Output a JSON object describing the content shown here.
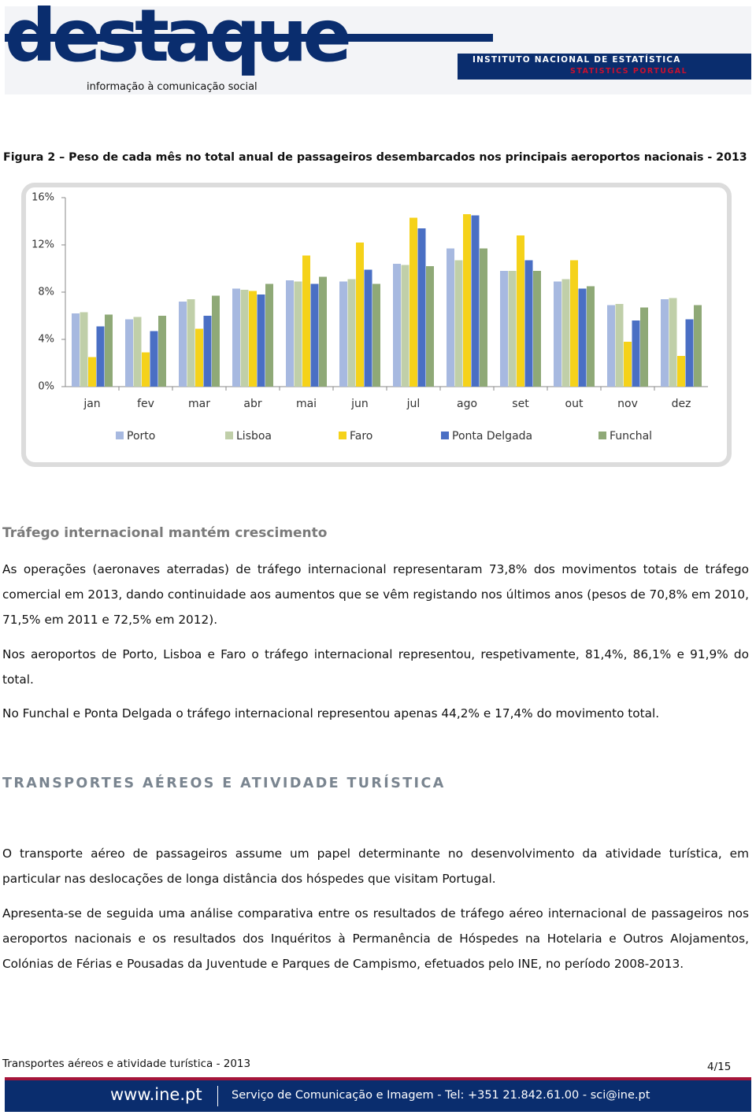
{
  "header": {
    "logo": "destaque",
    "tagline": "informação à comunicação social",
    "institute": "INSTITUTO NACIONAL DE ESTATÍSTICA",
    "institute_en": "STATISTICS PORTUGAL"
  },
  "chart_data": {
    "type": "bar",
    "title": "Figura 2 – Peso de cada mês no total anual de passageiros desembarcados nos principais aeroportos nacionais - 2013",
    "categories": [
      "jan",
      "fev",
      "mar",
      "abr",
      "mai",
      "jun",
      "jul",
      "ago",
      "set",
      "out",
      "nov",
      "dez"
    ],
    "series": [
      {
        "name": "Porto",
        "color": "#a7b9e0",
        "values": [
          6.2,
          5.7,
          7.2,
          8.3,
          9.0,
          8.9,
          10.4,
          11.7,
          9.8,
          8.9,
          6.9,
          7.4
        ]
      },
      {
        "name": "Lisboa",
        "color": "#c0cfa9",
        "values": [
          6.3,
          5.9,
          7.4,
          8.2,
          8.9,
          9.1,
          10.3,
          10.7,
          9.8,
          9.1,
          7.0,
          7.5
        ]
      },
      {
        "name": "Faro",
        "color": "#f5d21a",
        "values": [
          2.5,
          2.9,
          4.9,
          8.1,
          11.1,
          12.2,
          14.3,
          14.6,
          12.8,
          10.7,
          3.8,
          2.6
        ]
      },
      {
        "name": "Ponta Delgada",
        "color": "#4a6fc4",
        "values": [
          5.1,
          4.7,
          6.0,
          7.8,
          8.7,
          9.9,
          13.4,
          14.5,
          10.7,
          8.3,
          5.6,
          5.7
        ]
      },
      {
        "name": "Funchal",
        "color": "#8fa977",
        "values": [
          6.1,
          6.0,
          7.7,
          8.7,
          9.3,
          8.7,
          10.2,
          11.7,
          9.8,
          8.5,
          6.7,
          6.9
        ]
      }
    ],
    "ylim": [
      0,
      16
    ],
    "yticks": [
      {
        "value": 0,
        "label": "0%"
      },
      {
        "value": 4,
        "label": "4%"
      },
      {
        "value": 8,
        "label": "8%"
      },
      {
        "value": 12,
        "label": "12%"
      },
      {
        "value": 16,
        "label": "16%"
      }
    ],
    "grid": false,
    "legend": "bottom"
  },
  "section1": {
    "heading": "Tráfego internacional mantém crescimento",
    "paragraphs": [
      "As operações (aeronaves aterradas) de tráfego internacional representaram 73,8% dos movimentos totais de tráfego comercial em 2013, dando continuidade aos aumentos que se vêm registando nos últimos anos (pesos de 70,8% em 2010, 71,5% em 2011 e 72,5% em 2012).",
      "Nos aeroportos de Porto, Lisboa e Faro o tráfego internacional representou, respetivamente, 81,4%, 86,1% e 91,9% do total.",
      "No Funchal e Ponta Delgada o tráfego internacional representou apenas 44,2% e 17,4% do movimento total."
    ]
  },
  "section2": {
    "heading": "TRANSPORTES AÉREOS E ATIVIDADE TURÍSTICA",
    "paragraphs": [
      "O transporte aéreo de passageiros assume um papel determinante no desenvolvimento da atividade turística, em particular nas deslocações de longa distância dos hóspedes que visitam Portugal.",
      "Apresenta-se de seguida uma análise comparativa entre os resultados de tráfego aéreo internacional de passageiros nos aeroportos nacionais e os resultados dos Inquéritos à Permanência de Hóspedes na Hotelaria e Outros Alojamentos, Colónias de Férias e Pousadas da Juventude e Parques de Campismo, efetuados pelo INE, no período 2008-2013."
    ]
  },
  "footer": {
    "doc_title": "Transportes aéreos e atividade turística - 2013",
    "page": "4/15",
    "site": "www.ine.pt",
    "contact": "Serviço de Comunicação e Imagem - Tel: +351 21.842.61.00 - sci@ine.pt"
  }
}
